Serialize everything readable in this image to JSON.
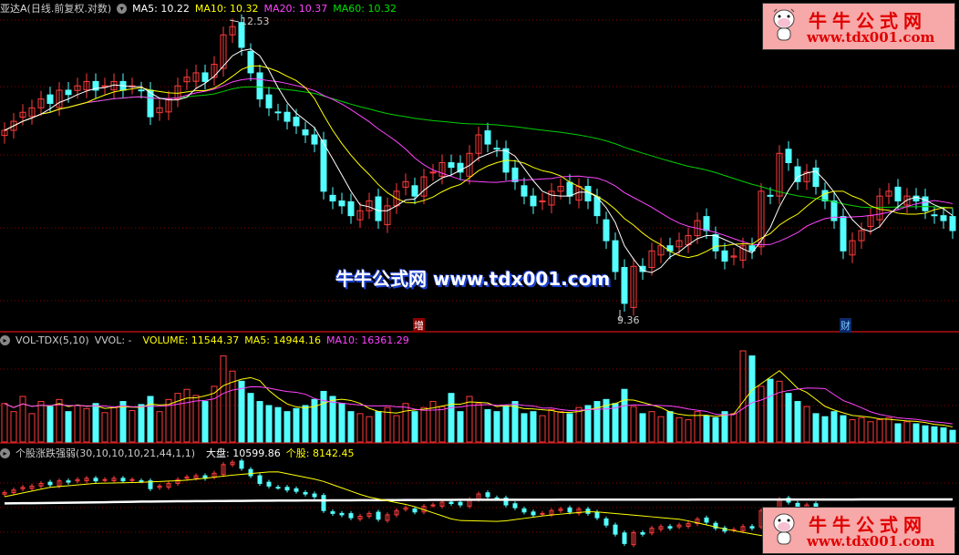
{
  "header": {
    "stock_name": "亚达A",
    "mode": "(日线.前复权.对数)",
    "ma5": "MA5: 10.22",
    "ma10": "MA10: 10.32",
    "ma20": "MA20: 10.37",
    "ma60": "MA60: 10.32"
  },
  "volume_header": {
    "name": "VOL-TDX(5,10)",
    "vvol": "VVOL: -",
    "volume": "VOLUME: 11544.37",
    "ma5": "MA5: 14944.16",
    "ma10": "MA10: 16361.29"
  },
  "indicator_header": {
    "name": "个股涨跌强弱(30,10,10,10,21,44,1,1)",
    "market": "大盘: 10599.86",
    "stock": "个股: 8142.45"
  },
  "annotations": {
    "high": "12.53",
    "low": "9.36",
    "marker_1": "增",
    "marker_2": "财"
  },
  "watermark": {
    "text": "牛牛公式网 www.tdx001.com",
    "logo_title": "牛牛公式网",
    "logo_url": "www.tdx001.com"
  },
  "colors": {
    "up": "#ff3c3c",
    "down": "#54ffff",
    "ma5": "#ffffff",
    "ma10": "#ffff00",
    "ma20": "#ff44ff",
    "ma60": "#00d000",
    "grid": "#8b0000",
    "separator": "#b01010"
  },
  "chart_data": [
    {
      "type": "candlestick",
      "title": "亚达A",
      "scale": "log",
      "ylim": [
        9.2,
        12.8
      ],
      "close": [
        11.25,
        11.35,
        11.45,
        11.5,
        11.6,
        11.55,
        11.7,
        11.65,
        11.75,
        11.8,
        11.7,
        11.75,
        11.8,
        11.7,
        11.75,
        11.7,
        11.4,
        11.5,
        11.6,
        11.75,
        11.85,
        11.9,
        11.8,
        12.0,
        12.35,
        12.45,
        12.2,
        11.9,
        11.6,
        11.5,
        11.45,
        11.35,
        11.3,
        11.2,
        11.1,
        10.6,
        10.5,
        10.45,
        10.35,
        10.4,
        10.5,
        10.3,
        10.45,
        10.6,
        10.7,
        10.55,
        10.75,
        10.8,
        10.9,
        10.85,
        10.8,
        11.0,
        11.2,
        11.1,
        11.05,
        10.8,
        10.7,
        10.55,
        10.45,
        10.5,
        10.6,
        10.65,
        10.55,
        10.65,
        10.5,
        10.35,
        10.1,
        9.8,
        9.5,
        9.85,
        9.8,
        10.0,
        10.05,
        10.0,
        10.1,
        10.15,
        10.3,
        10.2,
        10.0,
        9.9,
        9.95,
        10.05,
        10.0,
        10.6,
        10.55,
        11.0,
        10.9,
        10.7,
        10.8,
        10.65,
        10.5,
        10.3,
        10.0,
        10.1,
        10.2,
        10.35,
        10.55,
        10.6,
        10.5,
        10.55,
        10.5,
        10.4,
        10.35,
        10.3,
        10.2
      ],
      "moving_averages": [
        5,
        10,
        20,
        60
      ],
      "max_label": "12.53",
      "min_label": "9.36"
    },
    {
      "type": "bar",
      "title": "VOL-TDX(5,10)",
      "ylim": [
        0,
        110000
      ],
      "values": [
        38000,
        30000,
        45000,
        28000,
        40000,
        35000,
        42000,
        30000,
        36000,
        33000,
        38000,
        29000,
        34000,
        40000,
        31000,
        37000,
        45000,
        30000,
        42000,
        48000,
        52000,
        46000,
        40000,
        55000,
        85000,
        70000,
        60000,
        48000,
        40000,
        36000,
        34000,
        30000,
        33000,
        36000,
        42000,
        50000,
        45000,
        38000,
        30000,
        28000,
        25000,
        30000,
        34000,
        26000,
        38000,
        30000,
        34000,
        40000,
        35000,
        48000,
        30000,
        45000,
        38000,
        32000,
        30000,
        35000,
        40000,
        28000,
        30000,
        26000,
        32000,
        30000,
        28000,
        34000,
        36000,
        40000,
        42000,
        38000,
        52000,
        35000,
        28000,
        30000,
        25000,
        30000,
        24000,
        22000,
        30000,
        26000,
        24000,
        30000,
        28000,
        90000,
        85000,
        55000,
        62000,
        60000,
        48000,
        40000,
        35000,
        28000,
        25000,
        30000,
        26000,
        22000,
        24000,
        20000,
        22000,
        24000,
        18000,
        20000,
        18000,
        16000,
        15000,
        14000,
        11544
      ],
      "moving_averages": [
        5,
        10
      ]
    },
    {
      "type": "line",
      "title": "个股涨跌强弱(30,10,10,10,21,44,1,1)",
      "series": [
        {
          "name": "大盘",
          "values": [
            10200,
            10250,
            10300,
            10380,
            10420,
            10450,
            10480,
            10500,
            10520,
            10540,
            10560,
            10570,
            10570,
            10580,
            10580,
            10580,
            10590,
            10590,
            10590,
            10595,
            10595,
            10600
          ]
        },
        {
          "name": "个股",
          "values": [
            10870,
            11800,
            12200,
            12300,
            12500,
            13000,
            13400,
            12500,
            10900,
            10000,
            8500,
            8400,
            9000,
            9400,
            9000,
            8600,
            7600,
            6800,
            7200,
            8100,
            8800,
            8142
          ]
        }
      ]
    }
  ]
}
